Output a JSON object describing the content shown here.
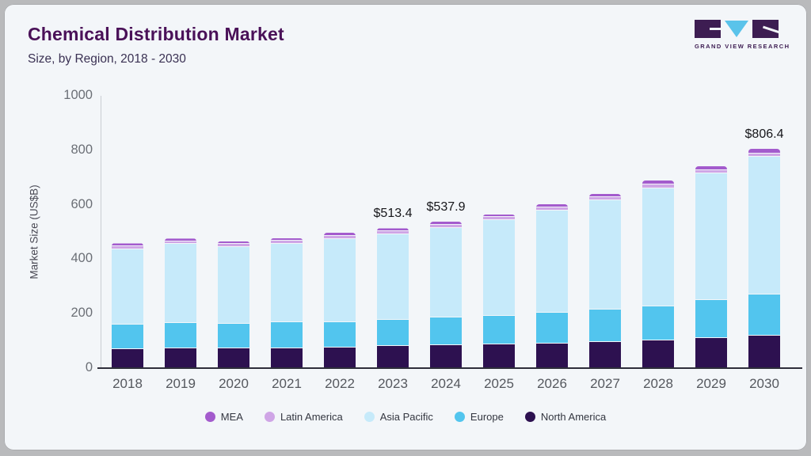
{
  "header": {
    "title": "Chemical Distribution Market",
    "subtitle": "Size, by Region, 2018 - 2030"
  },
  "logo": {
    "brand": "GVR",
    "text": "GRAND VIEW RESEARCH",
    "dark_color": "#3d1d52",
    "accent_color": "#5ac3ea"
  },
  "chart_data": {
    "type": "bar",
    "stacked": true,
    "title": "Chemical Distribution Market Size, by Region, 2018 - 2030",
    "ylabel": "Market Size (US$B)",
    "ylim": [
      0,
      1000
    ],
    "yticks": [
      0,
      200,
      400,
      600,
      800,
      1000
    ],
    "grid": false,
    "legend_position": "bottom",
    "categories": [
      "2018",
      "2019",
      "2020",
      "2021",
      "2022",
      "2023",
      "2024",
      "2025",
      "2026",
      "2027",
      "2028",
      "2029",
      "2030"
    ],
    "stack_order_bottom_to_top": [
      "North America",
      "Europe",
      "Asia Pacific",
      "Latin America",
      "MEA"
    ],
    "series": [
      {
        "name": "MEA",
        "color": "#a35bcd",
        "values": [
          11,
          11,
          11,
          11,
          11,
          11.4,
          11.9,
          11,
          12,
          13,
          15,
          15,
          17.4
        ]
      },
      {
        "name": "Latin America",
        "color": "#cfa5e6",
        "values": [
          10,
          10,
          10,
          10,
          11,
          11,
          11,
          11,
          12,
          12,
          13,
          13,
          14
        ]
      },
      {
        "name": "Asia Pacific",
        "color": "#c6eafa",
        "values": [
          277,
          288,
          282,
          289,
          305,
          315,
          329,
          351,
          375,
          399,
          432,
          464,
          506
        ]
      },
      {
        "name": "Europe",
        "color": "#52c5ee",
        "values": [
          91,
          95,
          91,
          95,
          93,
          96,
          103,
          105,
          112,
          121,
          125,
          139,
          150
        ]
      },
      {
        "name": "North America",
        "color": "#2d1150",
        "values": [
          69,
          72,
          72,
          73,
          77,
          80,
          83,
          87,
          91,
          95,
          103,
          111,
          119
        ]
      }
    ],
    "totals": [
      458,
      476,
      466,
      478,
      497,
      513.4,
      537.9,
      565,
      602,
      640,
      688,
      742,
      806.4
    ],
    "data_labels": {
      "2023": "$513.4",
      "2024": "$537.9",
      "2030": "$806.4"
    }
  }
}
